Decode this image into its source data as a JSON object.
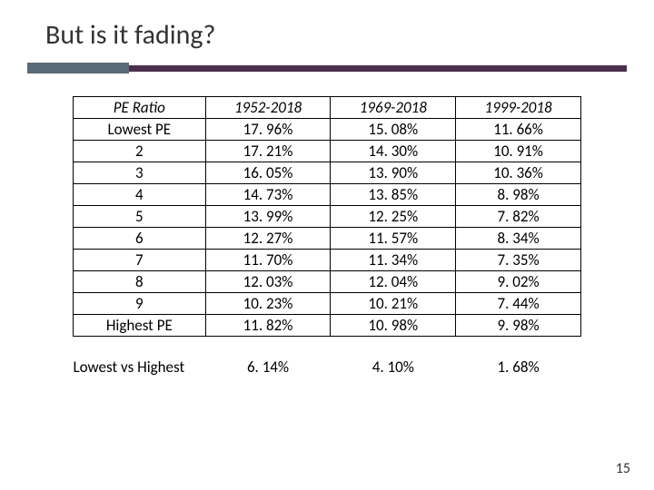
{
  "title": "But is it fading?",
  "columns": [
    "PE Ratio",
    "1952-2018",
    "1969-2018",
    "1999-2018"
  ],
  "rows": [
    [
      "Lowest PE",
      "17. 96%",
      "15. 08%",
      "11. 66%"
    ],
    [
      "2",
      "17. 21%",
      "14. 30%",
      "10. 91%"
    ],
    [
      "3",
      "16. 05%",
      "13. 90%",
      "10. 36%"
    ],
    [
      "4",
      "14. 73%",
      "13. 85%",
      "8. 98%"
    ],
    [
      "5",
      "13. 99%",
      "12. 25%",
      "7. 82%"
    ],
    [
      "6",
      "12. 27%",
      "11. 57%",
      "8. 34%"
    ],
    [
      "7",
      "11. 70%",
      "11. 34%",
      "7. 35%"
    ],
    [
      "8",
      "12. 03%",
      "12. 04%",
      "9. 02%"
    ],
    [
      "9",
      "10. 23%",
      "10. 21%",
      "7. 44%"
    ],
    [
      "Highest PE",
      "11. 82%",
      "10. 98%",
      "9. 98%"
    ]
  ],
  "summary": [
    "Lowest vs Highest",
    "6. 14%",
    "4. 10%",
    "1. 68%"
  ],
  "page_number": "15",
  "colors": {
    "accent_block": "#5a6b78",
    "accent_line": "#4b2f4e",
    "text": "#333333",
    "border": "#000000"
  }
}
